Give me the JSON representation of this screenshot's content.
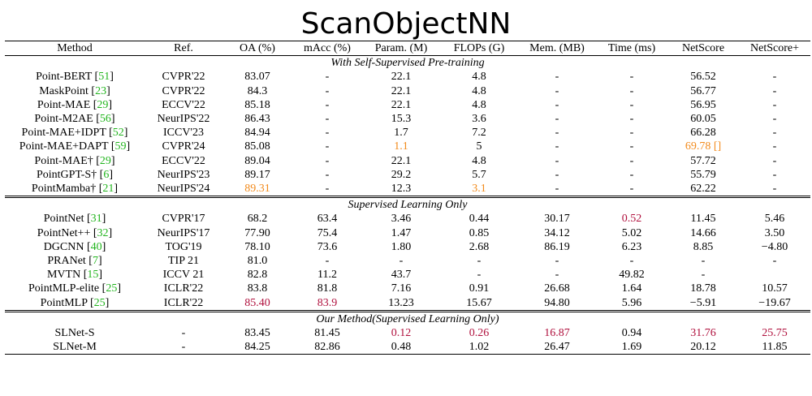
{
  "title": "ScanObjectNN",
  "columns": [
    "Method",
    "Ref.",
    "OA (%)",
    "mAcc (%)",
    "Param. (M)",
    "FLOPs (G)",
    "Mem. (MB)",
    "Time (ms)",
    "NetScore",
    "NetScore+"
  ],
  "sections": [
    {
      "label": "With Self-Supervised Pre-training",
      "rows": [
        {
          "method": "Point-BERT",
          "cite": "51",
          "ref": "CVPR'22",
          "oa": "83.07",
          "macc": "-",
          "param": "22.1",
          "flops": "4.8",
          "mem": "-",
          "time": "-",
          "netscore": "56.52",
          "netscore_plus": "-"
        },
        {
          "method": "MaskPoint",
          "cite": "23",
          "ref": "CVPR'22",
          "oa": "84.3",
          "macc": "-",
          "param": "22.1",
          "flops": "4.8",
          "mem": "-",
          "time": "-",
          "netscore": "56.77",
          "netscore_plus": "-"
        },
        {
          "method": "Point-MAE",
          "cite": "29",
          "ref": "ECCV'22",
          "oa": "85.18",
          "macc": "-",
          "param": "22.1",
          "flops": "4.8",
          "mem": "-",
          "time": "-",
          "netscore": "56.95",
          "netscore_plus": "-"
        },
        {
          "method": "Point-M2AE",
          "cite": "56",
          "ref": "NeurIPS'22",
          "oa": "86.43",
          "macc": "-",
          "param": "15.3",
          "flops": "3.6",
          "mem": "-",
          "time": "-",
          "netscore": "60.05",
          "netscore_plus": "-"
        },
        {
          "method": "Point-MAE+IDPT",
          "cite": "52",
          "ref": "ICCV'23",
          "oa": "84.94",
          "macc": "-",
          "param": "1.7",
          "flops": "7.2",
          "mem": "-",
          "time": "-",
          "netscore": "66.28",
          "netscore_plus": "-"
        },
        {
          "method": "Point-MAE+DAPT",
          "cite": "59",
          "ref": "CVPR'24",
          "oa": "85.08",
          "macc": "-",
          "param": "1.1",
          "flops": "5",
          "mem": "-",
          "time": "-",
          "netscore": "69.78 []",
          "netscore_plus": "-"
        },
        {
          "method": "Point-MAE†",
          "cite": "29",
          "ref": "ECCV'22",
          "oa": "89.04",
          "macc": "-",
          "param": "22.1",
          "flops": "4.8",
          "mem": "-",
          "time": "-",
          "netscore": "57.72",
          "netscore_plus": "-"
        },
        {
          "method": "PointGPT-S†",
          "cite": "6",
          "ref": "NeurIPS'23",
          "oa": "89.17",
          "macc": "-",
          "param": "29.2",
          "flops": "5.7",
          "mem": "-",
          "time": "-",
          "netscore": "55.79",
          "netscore_plus": "-"
        },
        {
          "method": "PointMamba†",
          "cite": "21",
          "ref": "NeurIPS'24",
          "oa": "89.31",
          "macc": "-",
          "param": "12.3",
          "flops": "3.1",
          "mem": "-",
          "time": "-",
          "netscore": "62.22",
          "netscore_plus": "-"
        }
      ]
    },
    {
      "label": "Supervised Learning Only",
      "rows": [
        {
          "method": "PointNet",
          "cite": "31",
          "ref": "CVPR'17",
          "oa": "68.2",
          "macc": "63.4",
          "param": "3.46",
          "flops": "0.44",
          "mem": "30.17",
          "time": "0.52",
          "netscore": "11.45",
          "netscore_plus": "5.46"
        },
        {
          "method": "PointNet++",
          "cite": "32",
          "ref": "NeurIPS'17",
          "oa": "77.90",
          "macc": "75.4",
          "param": "1.47",
          "flops": "0.85",
          "mem": "34.12",
          "time": "5.02",
          "netscore": "14.66",
          "netscore_plus": "3.50"
        },
        {
          "method": "DGCNN",
          "cite": "40",
          "ref": "TOG'19",
          "oa": "78.10",
          "macc": "73.6",
          "param": "1.80",
          "flops": "2.68",
          "mem": "86.19",
          "time": "6.23",
          "netscore": "8.85",
          "netscore_plus": "−4.80"
        },
        {
          "method": "PRANet",
          "cite": "7",
          "ref": "TIP 21",
          "oa": "81.0",
          "macc": "-",
          "param": "-",
          "flops": "-",
          "mem": "-",
          "time": "-",
          "netscore": "-",
          "netscore_plus": "-"
        },
        {
          "method": "MVTN",
          "cite": "15",
          "ref": "ICCV 21",
          "oa": "82.8",
          "macc": "11.2",
          "param": "43.7",
          "flops": "-",
          "mem": "-",
          "time": "49.82",
          "netscore": "-",
          "netscore_plus": ""
        },
        {
          "method": "PointMLP-elite",
          "cite": "25",
          "ref": "ICLR'22",
          "oa": "83.8",
          "macc": "81.8",
          "param": "7.16",
          "flops": "0.91",
          "mem": "26.68",
          "time": "1.64",
          "netscore": "18.78",
          "netscore_plus": "10.57"
        },
        {
          "method": "PointMLP",
          "cite": "25",
          "ref": "ICLR'22",
          "oa": "85.40",
          "macc": "83.9",
          "param": "13.23",
          "flops": "15.67",
          "mem": "94.80",
          "time": "5.96",
          "netscore": "−5.91",
          "netscore_plus": "−19.67"
        }
      ]
    },
    {
      "label": "Our Method(Supervised Learning Only)",
      "rows": [
        {
          "method": "SLNet-S",
          "cite": "",
          "ref": "-",
          "oa": "83.45",
          "macc": "81.45",
          "param": "0.12",
          "flops": "0.26",
          "mem": "16.87",
          "time": "0.94",
          "netscore": "31.76",
          "netscore_plus": "25.75"
        },
        {
          "method": "SLNet-M",
          "cite": "",
          "ref": "-",
          "oa": "84.25",
          "macc": "82.86",
          "param": "0.48",
          "flops": "1.02",
          "mem": "26.47",
          "time": "1.69",
          "netscore": "20.12",
          "netscore_plus": "11.85"
        }
      ]
    }
  ],
  "highlight_colors": {
    "citation": "#22b51e",
    "best_pretrain": "#f28a1b",
    "best_supervised": "#b0103d"
  }
}
